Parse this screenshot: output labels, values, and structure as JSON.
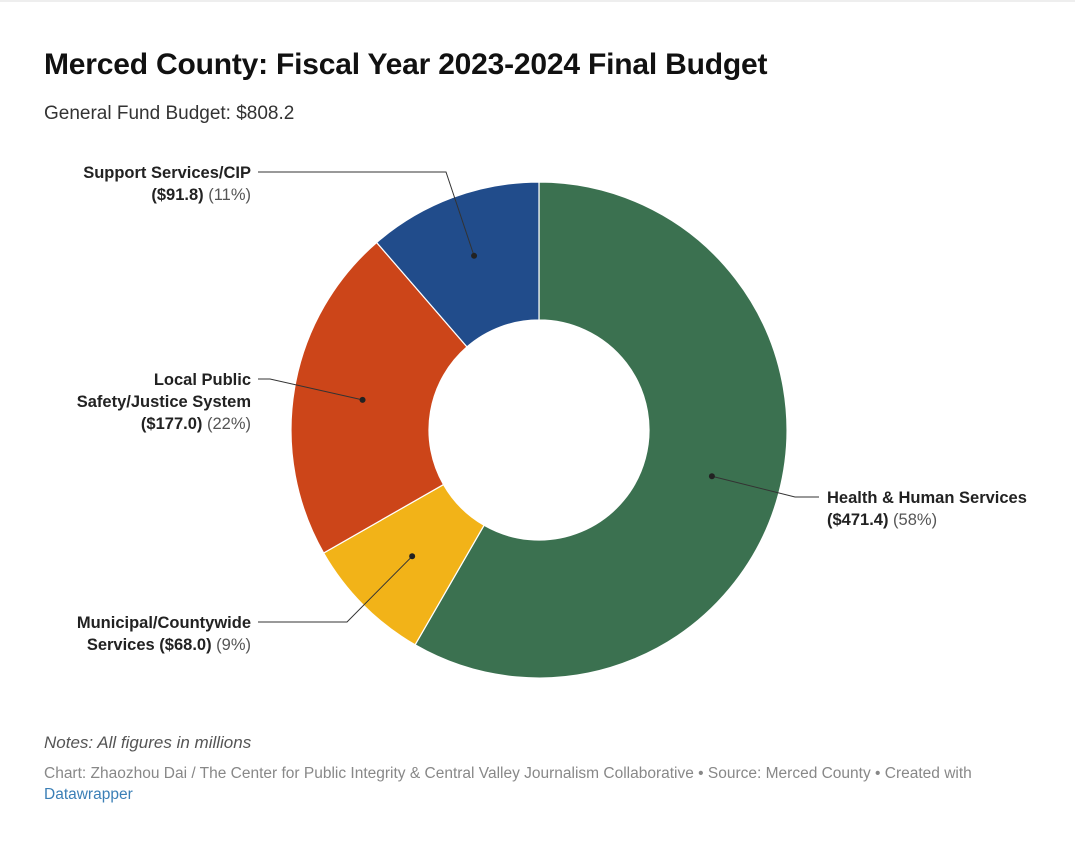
{
  "header": {
    "title": "Merced County: Fiscal Year 2023-2024 Final Budget",
    "subtitle": "General Fund Budget: $808.2"
  },
  "footer": {
    "notes": "Notes: All figures in millions",
    "credits": "Chart: Zhaozhou Dai / The Center for Public Integrity & Central Valley Journalism Collaborative • Source: Merced County • Created with",
    "link": "Datawrapper"
  },
  "chart_data": {
    "type": "pie",
    "donut": true,
    "start": "12 o'clock, clockwise",
    "total": 808.2,
    "slices": [
      {
        "label": "Health & Human Services",
        "value": 471.4,
        "value_label": "($471.4)",
        "percent_label": "(58%)",
        "color": "#3b7150"
      },
      {
        "label": "Municipal/Countywide Services",
        "value": 68.0,
        "value_label": "($68.0)",
        "percent_label": "(9%)",
        "color": "#f2b318"
      },
      {
        "label": "Local Public Safety/Justice System",
        "value": 177.0,
        "value_label": "($177.0)",
        "percent_label": "(22%)",
        "color": "#cc4519"
      },
      {
        "label": "Support Services/CIP",
        "value": 91.8,
        "value_label": "($91.8)",
        "percent_label": "(11%)",
        "color": "#214c8b"
      }
    ]
  }
}
